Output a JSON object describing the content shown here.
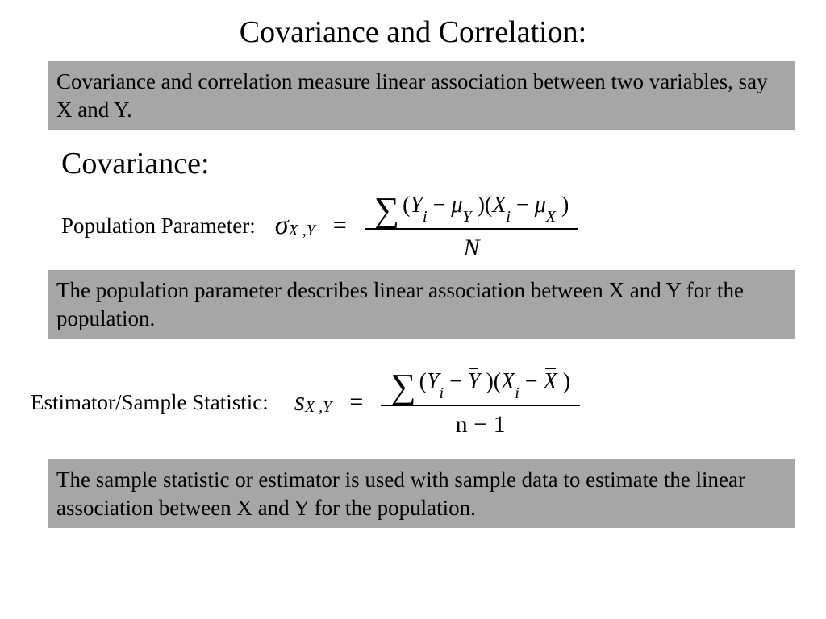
{
  "title": "Covariance and Correlation:",
  "intro_box": "Covariance and correlation measure linear association between two variables, say X and Y.",
  "subheading": "Covariance:",
  "pop_label": "Population Parameter:",
  "pop_box": "The population parameter describes linear association between X and Y for the population.",
  "est_label": "Estimator/Sample Statistic:",
  "est_box": "The sample statistic or estimator is used with sample data to estimate the linear association between X and Y for the population.",
  "formula_pop": {
    "lhs_symbol": "σ",
    "lhs_sub": "X ,Y",
    "num_prefix": "∑",
    "num_body_html": "(<span class='it'>Y</span><span class='sub'>i</span> − <span class='mu'>μ</span><span class='sub'>Y</span> )(<span class='it'>X</span><span class='sub'>i</span> − <span class='mu'>μ</span><span class='sub'>X</span> )",
    "den": "N"
  },
  "formula_est": {
    "lhs_symbol": "s",
    "lhs_sub": "X ,Y",
    "num_prefix": "∑",
    "num_body_html": "(<span class='it'>Y</span><span class='sub'>i</span> − <span class='bar it'>Y</span> )(<span class='it'>X</span><span class='sub'>i</span> − <span class='bar it'>X</span> )",
    "den": "n − 1"
  },
  "colors": {
    "gray_bg": "#a6a6a6",
    "text": "#000000",
    "bg": "#ffffff"
  }
}
